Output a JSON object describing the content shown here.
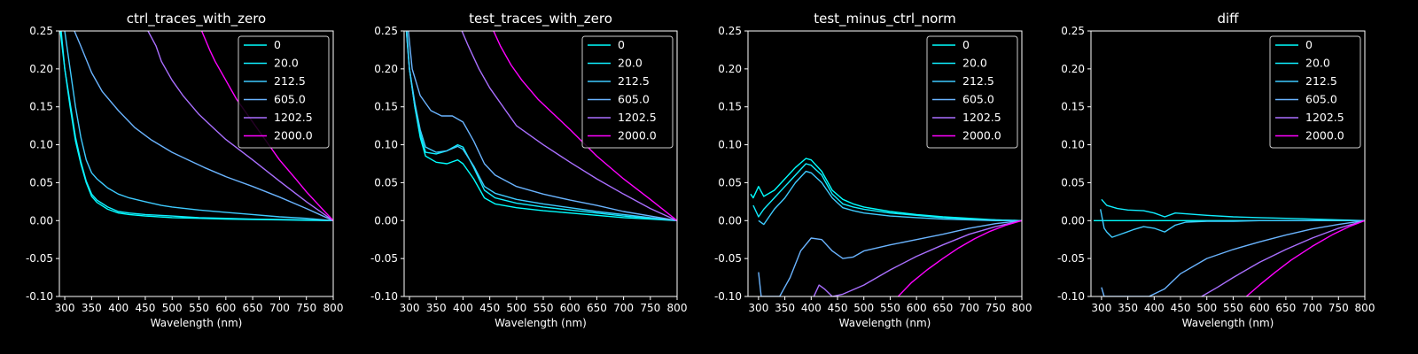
{
  "chart_data": [
    {
      "type": "line",
      "title": "ctrl_traces_with_zero",
      "xlabel": "Wavelength (nm)",
      "ylabel": "",
      "xlim": [
        290,
        800
      ],
      "ylim": [
        -0.1,
        0.25
      ],
      "xticks": [
        300,
        350,
        400,
        450,
        500,
        550,
        600,
        650,
        700,
        750,
        800
      ],
      "yticks": [
        -0.1,
        -0.05,
        0.0,
        0.05,
        0.1,
        0.15,
        0.2,
        0.25
      ],
      "grid": false,
      "legend": "top-right",
      "series": [
        {
          "name": "0",
          "color": "#00ffff",
          "x": [
            290,
            300,
            310,
            320,
            330,
            340,
            350,
            360,
            380,
            400,
            420,
            450,
            500,
            550,
            600,
            650,
            700,
            750,
            800
          ],
          "y": [
            0.26,
            0.2,
            0.15,
            0.105,
            0.075,
            0.05,
            0.032,
            0.024,
            0.015,
            0.01,
            0.008,
            0.006,
            0.004,
            0.003,
            0.002,
            0.0015,
            0.001,
            0.0005,
            0.0
          ]
        },
        {
          "name": "20.0",
          "color": "#10eeff",
          "x": [
            292,
            300,
            310,
            320,
            330,
            340,
            350,
            360,
            380,
            400,
            420,
            450,
            500,
            550,
            600,
            650,
            700,
            750,
            800
          ],
          "y": [
            0.26,
            0.2,
            0.155,
            0.11,
            0.078,
            0.052,
            0.035,
            0.027,
            0.018,
            0.012,
            0.01,
            0.008,
            0.006,
            0.004,
            0.003,
            0.002,
            0.0015,
            0.001,
            0.0
          ]
        },
        {
          "name": "212.5",
          "color": "#3ecbff",
          "x": [
            298,
            310,
            320,
            330,
            340,
            350,
            360,
            370,
            380,
            400,
            420,
            450,
            480,
            500,
            550,
            600,
            650,
            700,
            750,
            800
          ],
          "y": [
            0.26,
            0.2,
            0.15,
            0.11,
            0.08,
            0.063,
            0.055,
            0.049,
            0.043,
            0.035,
            0.03,
            0.025,
            0.02,
            0.018,
            0.014,
            0.011,
            0.008,
            0.005,
            0.003,
            0.0
          ]
        },
        {
          "name": "605.0",
          "color": "#6ab4ff",
          "x": [
            312,
            330,
            350,
            370,
            400,
            430,
            460,
            500,
            530,
            560,
            600,
            650,
            700,
            750,
            800
          ],
          "y": [
            0.26,
            0.23,
            0.195,
            0.17,
            0.145,
            0.123,
            0.107,
            0.09,
            0.08,
            0.07,
            0.058,
            0.045,
            0.031,
            0.016,
            0.0
          ]
        },
        {
          "name": "1202.5",
          "color": "#aa6fff",
          "x": [
            455,
            470,
            480,
            500,
            520,
            550,
            580,
            600,
            650,
            700,
            750,
            800
          ],
          "y": [
            0.25,
            0.23,
            0.21,
            0.185,
            0.165,
            0.14,
            0.12,
            0.107,
            0.08,
            0.052,
            0.025,
            0.0
          ]
        },
        {
          "name": "2000.0",
          "color": "#ff00ff",
          "x": [
            555,
            570,
            580,
            600,
            620,
            650,
            680,
            700,
            730,
            750,
            780,
            800
          ],
          "y": [
            0.25,
            0.225,
            0.21,
            0.185,
            0.16,
            0.13,
            0.1,
            0.08,
            0.055,
            0.038,
            0.015,
            0.0
          ]
        }
      ]
    },
    {
      "type": "line",
      "title": "test_traces_with_zero",
      "xlabel": "Wavelength (nm)",
      "ylabel": "",
      "xlim": [
        290,
        800
      ],
      "ylim": [
        -0.1,
        0.25
      ],
      "xticks": [
        300,
        350,
        400,
        450,
        500,
        550,
        600,
        650,
        700,
        750,
        800
      ],
      "yticks": [
        -0.1,
        -0.05,
        0.0,
        0.05,
        0.1,
        0.15,
        0.2,
        0.25
      ],
      "grid": false,
      "legend": "top-right",
      "series": [
        {
          "name": "0",
          "color": "#00ffff",
          "x": [
            294,
            300,
            310,
            320,
            330,
            350,
            370,
            390,
            400,
            420,
            440,
            460,
            500,
            550,
            600,
            650,
            700,
            750,
            800
          ],
          "y": [
            0.26,
            0.2,
            0.15,
            0.11,
            0.085,
            0.077,
            0.075,
            0.08,
            0.075,
            0.055,
            0.03,
            0.022,
            0.017,
            0.013,
            0.01,
            0.007,
            0.004,
            0.002,
            0.0
          ]
        },
        {
          "name": "20.0",
          "color": "#10eeff",
          "x": [
            293,
            300,
            310,
            320,
            330,
            350,
            370,
            390,
            400,
            420,
            440,
            460,
            500,
            550,
            600,
            650,
            700,
            750,
            800
          ],
          "y": [
            0.26,
            0.2,
            0.15,
            0.115,
            0.09,
            0.088,
            0.092,
            0.1,
            0.097,
            0.07,
            0.04,
            0.03,
            0.023,
            0.018,
            0.014,
            0.01,
            0.006,
            0.003,
            0.0
          ]
        },
        {
          "name": "212.5",
          "color": "#3ecbff",
          "x": [
            293,
            300,
            310,
            320,
            330,
            350,
            370,
            390,
            400,
            420,
            440,
            460,
            500,
            550,
            600,
            650,
            700,
            750,
            800
          ],
          "y": [
            0.26,
            0.2,
            0.155,
            0.12,
            0.097,
            0.09,
            0.092,
            0.098,
            0.094,
            0.072,
            0.045,
            0.036,
            0.028,
            0.022,
            0.017,
            0.012,
            0.008,
            0.004,
            0.0
          ]
        },
        {
          "name": "605.0",
          "color": "#6ab4ff",
          "x": [
            298,
            305,
            320,
            340,
            360,
            380,
            400,
            420,
            440,
            460,
            500,
            550,
            600,
            650,
            700,
            750,
            800
          ],
          "y": [
            0.25,
            0.2,
            0.165,
            0.145,
            0.138,
            0.138,
            0.13,
            0.105,
            0.075,
            0.06,
            0.045,
            0.035,
            0.027,
            0.02,
            0.012,
            0.006,
            0.0
          ]
        },
        {
          "name": "1202.5",
          "color": "#aa6fff",
          "x": [
            398,
            410,
            430,
            450,
            480,
            500,
            550,
            600,
            650,
            700,
            750,
            800
          ],
          "y": [
            0.25,
            0.23,
            0.2,
            0.175,
            0.145,
            0.125,
            0.1,
            0.077,
            0.055,
            0.035,
            0.016,
            0.0
          ]
        },
        {
          "name": "2000.0",
          "color": "#ff00ff",
          "x": [
            457,
            470,
            490,
            510,
            540,
            570,
            600,
            650,
            700,
            750,
            800
          ],
          "y": [
            0.25,
            0.23,
            0.205,
            0.185,
            0.16,
            0.14,
            0.12,
            0.085,
            0.055,
            0.028,
            0.0
          ]
        }
      ]
    },
    {
      "type": "line",
      "title": "test_minus_ctrl_norm",
      "xlabel": "Wavelength (nm)",
      "ylabel": "",
      "xlim": [
        280,
        800
      ],
      "ylim": [
        -0.1,
        0.25
      ],
      "xticks": [
        300,
        350,
        400,
        450,
        500,
        550,
        600,
        650,
        700,
        750,
        800
      ],
      "yticks": [
        -0.1,
        -0.05,
        0.0,
        0.05,
        0.1,
        0.15,
        0.2,
        0.25
      ],
      "grid": false,
      "legend": "top-right",
      "series": [
        {
          "name": "0",
          "color": "#00ffff",
          "x": [
            285,
            290,
            300,
            310,
            330,
            350,
            370,
            390,
            400,
            420,
            440,
            460,
            480,
            500,
            550,
            600,
            650,
            700,
            750,
            800
          ],
          "y": [
            0.035,
            0.03,
            0.045,
            0.032,
            0.04,
            0.055,
            0.07,
            0.082,
            0.08,
            0.065,
            0.04,
            0.028,
            0.022,
            0.018,
            0.012,
            0.008,
            0.005,
            0.003,
            0.001,
            0.0
          ]
        },
        {
          "name": "20.0",
          "color": "#10eeff",
          "x": [
            290,
            300,
            310,
            330,
            350,
            370,
            390,
            400,
            420,
            440,
            460,
            480,
            500,
            550,
            600,
            650,
            700,
            750,
            800
          ],
          "y": [
            0.02,
            0.005,
            0.015,
            0.03,
            0.045,
            0.06,
            0.075,
            0.073,
            0.06,
            0.035,
            0.022,
            0.018,
            0.015,
            0.01,
            0.007,
            0.004,
            0.002,
            0.001,
            0.0
          ]
        },
        {
          "name": "212.5",
          "color": "#3ecbff",
          "x": [
            300,
            310,
            330,
            350,
            370,
            390,
            400,
            420,
            440,
            460,
            480,
            500,
            550,
            600,
            650,
            700,
            750,
            800
          ],
          "y": [
            0.0,
            -0.005,
            0.015,
            0.03,
            0.05,
            0.065,
            0.063,
            0.05,
            0.03,
            0.017,
            0.013,
            0.01,
            0.006,
            0.004,
            0.002,
            0.001,
            0.0,
            0.0
          ]
        },
        {
          "name": "605.0",
          "color": "#6ab4ff",
          "x": [
            300,
            305,
            340,
            360,
            380,
            400,
            420,
            440,
            460,
            480,
            500,
            550,
            600,
            650,
            700,
            750,
            800
          ],
          "y": [
            -0.068,
            -0.1,
            -0.1,
            -0.075,
            -0.04,
            -0.023,
            -0.025,
            -0.04,
            -0.05,
            -0.048,
            -0.04,
            -0.032,
            -0.025,
            -0.018,
            -0.01,
            -0.004,
            0.0
          ]
        },
        {
          "name": "1202.5",
          "color": "#aa6fff",
          "x": [
            405,
            415,
            425,
            440,
            460,
            500,
            550,
            600,
            650,
            700,
            750,
            800
          ],
          "y": [
            -0.1,
            -0.085,
            -0.09,
            -0.1,
            -0.097,
            -0.085,
            -0.065,
            -0.047,
            -0.032,
            -0.018,
            -0.008,
            0.0
          ]
        },
        {
          "name": "2000.0",
          "color": "#ff00ff",
          "x": [
            565,
            590,
            620,
            650,
            680,
            710,
            740,
            770,
            800
          ],
          "y": [
            -0.1,
            -0.082,
            -0.065,
            -0.05,
            -0.036,
            -0.024,
            -0.014,
            -0.006,
            0.0
          ]
        }
      ]
    },
    {
      "type": "line",
      "title": "diff",
      "xlabel": "Wavelength (nm)",
      "ylabel": "",
      "xlim": [
        280,
        800
      ],
      "ylim": [
        -0.1,
        0.25
      ],
      "xticks": [
        300,
        350,
        400,
        450,
        500,
        550,
        600,
        650,
        700,
        750,
        800
      ],
      "yticks": [
        -0.1,
        -0.05,
        0.0,
        0.05,
        0.1,
        0.15,
        0.2,
        0.25
      ],
      "grid": false,
      "legend": "top-right",
      "series": [
        {
          "name": "0",
          "color": "#00ffff",
          "x": [
            285,
            350,
            400,
            450,
            500,
            550,
            600,
            650,
            700,
            750,
            800
          ],
          "y": [
            0.0,
            0.0,
            0.0,
            0.0,
            0.0,
            0.0,
            0.0,
            0.0,
            0.0,
            0.0,
            0.0
          ]
        },
        {
          "name": "20.0",
          "color": "#10eeff",
          "x": [
            300,
            310,
            330,
            350,
            380,
            400,
            420,
            440,
            460,
            500,
            550,
            600,
            650,
            700,
            750,
            800
          ],
          "y": [
            0.028,
            0.02,
            0.016,
            0.014,
            0.013,
            0.01,
            0.005,
            0.01,
            0.009,
            0.007,
            0.005,
            0.004,
            0.003,
            0.002,
            0.001,
            0.0
          ]
        },
        {
          "name": "212.5",
          "color": "#3ecbff",
          "x": [
            298,
            305,
            310,
            320,
            340,
            360,
            380,
            400,
            420,
            440,
            460,
            500,
            550,
            600,
            650,
            700,
            750,
            800
          ],
          "y": [
            0.015,
            -0.01,
            -0.015,
            -0.022,
            -0.017,
            -0.012,
            -0.008,
            -0.01,
            -0.015,
            -0.006,
            -0.002,
            -0.001,
            -0.001,
            0.0,
            0.0,
            0.0,
            0.0,
            0.0
          ]
        },
        {
          "name": "605.0",
          "color": "#6ab4ff",
          "x": [
            300,
            305,
            390,
            420,
            450,
            480,
            500,
            550,
            600,
            650,
            700,
            750,
            800
          ],
          "y": [
            -0.088,
            -0.1,
            -0.1,
            -0.09,
            -0.07,
            -0.058,
            -0.05,
            -0.038,
            -0.028,
            -0.019,
            -0.011,
            -0.005,
            0.0
          ]
        },
        {
          "name": "1202.5",
          "color": "#aa6fff",
          "x": [
            490,
            520,
            550,
            600,
            650,
            700,
            750,
            800
          ],
          "y": [
            -0.1,
            -0.088,
            -0.075,
            -0.055,
            -0.038,
            -0.023,
            -0.01,
            0.0
          ]
        },
        {
          "name": "2000.0",
          "color": "#ff00ff",
          "x": [
            575,
            600,
            630,
            660,
            700,
            740,
            770,
            800
          ],
          "y": [
            -0.1,
            -0.085,
            -0.068,
            -0.052,
            -0.034,
            -0.018,
            -0.008,
            0.0
          ]
        }
      ]
    }
  ]
}
